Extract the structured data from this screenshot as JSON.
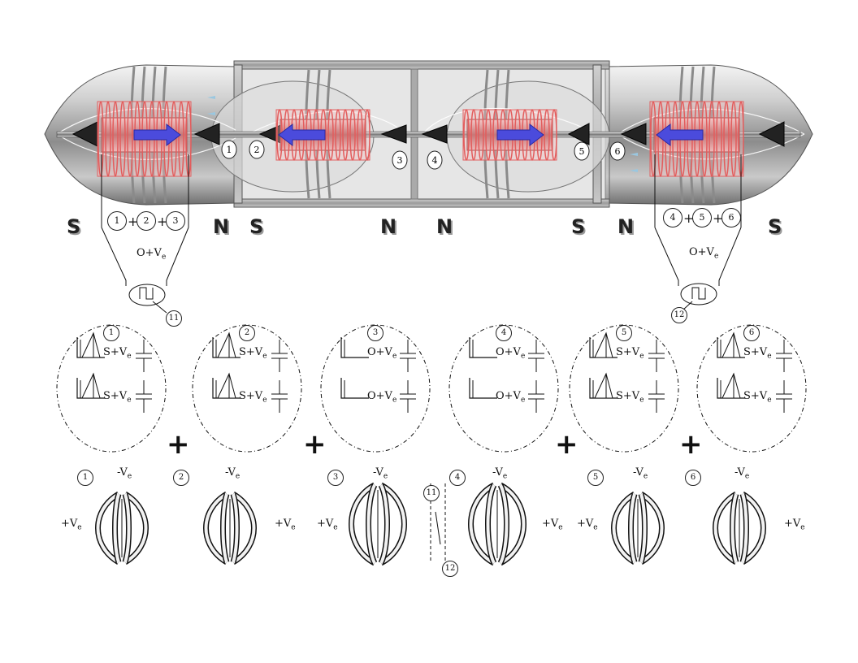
{
  "poles": [
    "S",
    "N",
    "S",
    "N",
    "N",
    "S",
    "N",
    "S"
  ],
  "top_sum_left": {
    "terms": [
      "1",
      "2",
      "3"
    ],
    "sep": "+"
  },
  "top_sum_right": {
    "terms": [
      "4",
      "5",
      "6"
    ],
    "sep": "+"
  },
  "bias_label_left": "O+V",
  "bias_label_right": "O+V",
  "bias_sub": "e",
  "marker_left": "11",
  "marker_right": "12",
  "panels": [
    {
      "num": "1",
      "top": "S+V",
      "bottom": "S+V",
      "sub": "e"
    },
    {
      "num": "2",
      "top": "S+V",
      "bottom": "S+V",
      "sub": "e"
    },
    {
      "num": "3",
      "top": "O+V",
      "bottom": "O+V",
      "sub": "e"
    },
    {
      "num": "4",
      "top": "O+V",
      "bottom": "O+V",
      "sub": "e"
    },
    {
      "num": "5",
      "top": "S+V",
      "bottom": "S+V",
      "sub": "e"
    },
    {
      "num": "6",
      "top": "S+V",
      "bottom": "S+V",
      "sub": "e"
    }
  ],
  "panel_plus": "+",
  "diaphragms": [
    {
      "num": "1",
      "top": "-V",
      "side": "+V",
      "sub": "e"
    },
    {
      "num": "2",
      "top": "-V",
      "side": "+V",
      "sub": "e"
    },
    {
      "num": "3",
      "top": "-V",
      "side": "+V",
      "sub": "e"
    },
    {
      "num": "4",
      "top": "-V",
      "side": "+V",
      "sub": "e"
    },
    {
      "num": "5",
      "top": "-V",
      "side": "+V",
      "sub": "e"
    },
    {
      "num": "6",
      "top": "-V",
      "side": "+V",
      "sub": "e"
    }
  ],
  "axis_markers": [
    "1",
    "2",
    "3",
    "4",
    "5",
    "6"
  ],
  "mid_markers": [
    "11",
    "12"
  ]
}
